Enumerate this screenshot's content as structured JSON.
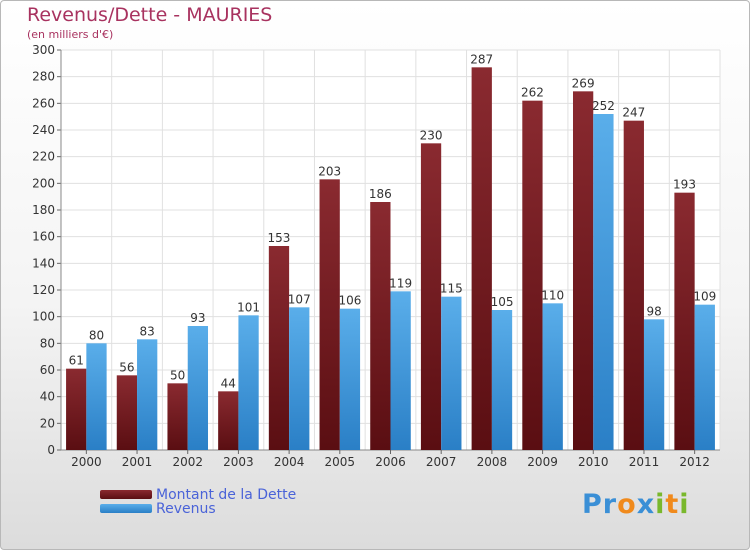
{
  "chart_data": {
    "type": "bar",
    "title": "Revenus/Dette - MAURIES",
    "subtitle": "(en milliers d'€)",
    "categories": [
      "2000",
      "2001",
      "2002",
      "2003",
      "2004",
      "2005",
      "2006",
      "2007",
      "2008",
      "2009",
      "2010",
      "2011",
      "2012"
    ],
    "series": [
      {
        "name": "Montant de la Dette",
        "color": "#7a1a1e",
        "values": [
          61,
          56,
          50,
          44,
          153,
          203,
          186,
          230,
          287,
          262,
          269,
          247,
          193
        ]
      },
      {
        "name": "Revenus",
        "color": "#3d9be0",
        "values": [
          80,
          83,
          93,
          101,
          107,
          106,
          119,
          115,
          105,
          110,
          252,
          98,
          109
        ]
      }
    ],
    "ylim": [
      0,
      300
    ],
    "ytick_step": 20,
    "grid": true,
    "legend_position": "bottom-left"
  },
  "logo": {
    "letters": [
      {
        "ch": "P",
        "color": "#3a8fd6"
      },
      {
        "ch": "r",
        "color": "#3a8fd6"
      },
      {
        "ch": "o",
        "color": "#f08a1c"
      },
      {
        "ch": "x",
        "color": "#3a8fd6"
      },
      {
        "ch": "i",
        "color": "#79b82c"
      },
      {
        "ch": "t",
        "color": "#f08a1c"
      },
      {
        "ch": "i",
        "color": "#79b82c"
      }
    ]
  }
}
